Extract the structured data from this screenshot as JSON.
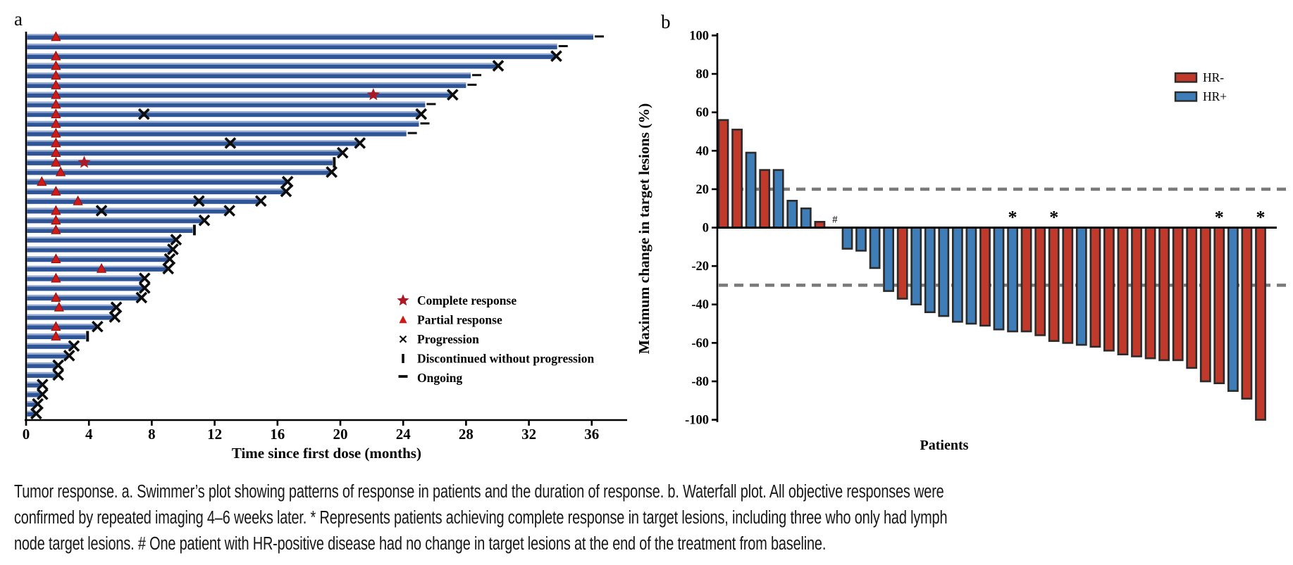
{
  "figure_title": "Tumor response",
  "colors": {
    "swimmer_bar": "#2f5597",
    "swimmer_bar_highlight": "#94aad1",
    "hr_neg_red": "#c0392b",
    "hr_pos_blue": "#3f7db8",
    "bar_outline": "#2b2b2b",
    "marker_triangle_red": "#cf1a17",
    "marker_triangle_edge": "#8e1010",
    "marker_star_red": "#ab1a24",
    "dashed_gray": "#7a7a7a",
    "axis_black": "#000000"
  },
  "chart_data": [
    {
      "type": "swimmer",
      "panel_label": "a",
      "xlabel": "Time since first dose (months)",
      "xlim": [
        0,
        38.5
      ],
      "xticks": [
        0,
        4,
        8,
        12,
        16,
        20,
        24,
        28,
        32,
        36
      ],
      "legend": [
        {
          "marker": "star",
          "label": "Complete response"
        },
        {
          "marker": "triangle",
          "label": "Partial response"
        },
        {
          "marker": "cross",
          "label": "Progression"
        },
        {
          "marker": "vbar",
          "label": "Discontinued without progression"
        },
        {
          "marker": "dash",
          "label": "Ongoing"
        }
      ],
      "bars": [
        {
          "duration": 36.1,
          "end": "ongoing",
          "partial_response_at": 1.9
        },
        {
          "duration": 33.8,
          "end": "ongoing"
        },
        {
          "duration": 33.7,
          "end": "progression",
          "partial_response_at": 1.9
        },
        {
          "duration": 30.0,
          "end": "progression",
          "partial_response_at": 1.9
        },
        {
          "duration": 28.3,
          "end": "ongoing",
          "partial_response_at": 1.9
        },
        {
          "duration": 28.0,
          "end": "ongoing",
          "partial_response_at": 1.9
        },
        {
          "duration": 27.1,
          "end": "progression",
          "partial_response_at": 1.9,
          "complete_response_at": 22.1
        },
        {
          "duration": 25.4,
          "end": "ongoing",
          "partial_response_at": 1.9
        },
        {
          "duration": 25.1,
          "end": "progression",
          "partial_response_at": 1.9,
          "progression_at": [
            7.5
          ]
        },
        {
          "duration": 25.0,
          "end": "ongoing",
          "partial_response_at": 1.9
        },
        {
          "duration": 24.2,
          "end": "ongoing",
          "partial_response_at": 1.9
        },
        {
          "duration": 21.2,
          "end": "progression",
          "partial_response_at": 1.9,
          "progression_at": [
            13.0
          ]
        },
        {
          "duration": 20.1,
          "end": "progression",
          "partial_response_at": 1.9
        },
        {
          "duration": 19.5,
          "end": "discontinued",
          "partial_response_at": 1.9,
          "complete_response_at": 3.7
        },
        {
          "duration": 19.4,
          "end": "progression",
          "partial_response_at": 2.2
        },
        {
          "duration": 16.6,
          "end": "progression",
          "partial_response_at": 1.0
        },
        {
          "duration": 16.5,
          "end": "progression",
          "partial_response_at": 1.9
        },
        {
          "duration": 14.9,
          "end": "progression",
          "partial_response_at": 3.3,
          "progression_at": [
            11.0
          ]
        },
        {
          "duration": 12.9,
          "end": "progression",
          "partial_response_at": 1.9,
          "progression_at": [
            4.8
          ]
        },
        {
          "duration": 11.3,
          "end": "progression",
          "partial_response_at": 1.9
        },
        {
          "duration": 10.6,
          "end": "discontinued",
          "partial_response_at": 1.9
        },
        {
          "duration": 9.5,
          "end": "progression"
        },
        {
          "duration": 9.3,
          "end": "progression"
        },
        {
          "duration": 9.1,
          "end": "progression",
          "partial_response_at": 1.9
        },
        {
          "duration": 9.0,
          "end": "progression",
          "partial_response_at": 4.8
        },
        {
          "duration": 7.5,
          "end": "progression",
          "partial_response_at": 1.9
        },
        {
          "duration": 7.5,
          "end": "progression"
        },
        {
          "duration": 7.3,
          "end": "progression",
          "partial_response_at": 1.9
        },
        {
          "duration": 5.7,
          "end": "progression",
          "partial_response_at": 2.1
        },
        {
          "duration": 5.6,
          "end": "progression"
        },
        {
          "duration": 4.5,
          "end": "progression",
          "partial_response_at": 1.9
        },
        {
          "duration": 3.8,
          "end": "discontinued",
          "partial_response_at": 1.9
        },
        {
          "duration": 3.0,
          "end": "progression"
        },
        {
          "duration": 2.7,
          "end": "progression"
        },
        {
          "duration": 2.0,
          "end": "progression"
        },
        {
          "duration": 2.0,
          "end": "progression"
        },
        {
          "duration": 1.0,
          "end": "progression"
        },
        {
          "duration": 1.0,
          "end": "progression"
        },
        {
          "duration": 0.7,
          "end": "progression"
        },
        {
          "duration": 0.6,
          "end": "progression"
        }
      ]
    },
    {
      "type": "bar",
      "subtype": "waterfall",
      "panel_label": "b",
      "ylabel": "Maximum change in target lesions (%)",
      "xlabel": "Patients",
      "ylim": [
        -100,
        100
      ],
      "yticks": [
        100,
        80,
        60,
        40,
        20,
        0,
        -20,
        -40,
        -60,
        -80,
        -100
      ],
      "reference_lines": [
        20,
        -30
      ],
      "legend": [
        {
          "label": "HR-",
          "group": "HR-"
        },
        {
          "label": "HR+",
          "group": "HR+"
        }
      ],
      "patients": [
        {
          "value": 56,
          "group": "HR-"
        },
        {
          "value": 51,
          "group": "HR-"
        },
        {
          "value": 39,
          "group": "HR+"
        },
        {
          "value": 30,
          "group": "HR-"
        },
        {
          "value": 30,
          "group": "HR+"
        },
        {
          "value": 14,
          "group": "HR+"
        },
        {
          "value": 10,
          "group": "HR+"
        },
        {
          "value": 3,
          "group": "HR-"
        },
        {
          "value": 0,
          "group": "HR+",
          "annotation": "#"
        },
        {
          "value": -11,
          "group": "HR+"
        },
        {
          "value": -12,
          "group": "HR+"
        },
        {
          "value": -21,
          "group": "HR+"
        },
        {
          "value": -33,
          "group": "HR+"
        },
        {
          "value": -37,
          "group": "HR-"
        },
        {
          "value": -40,
          "group": "HR+"
        },
        {
          "value": -44,
          "group": "HR+"
        },
        {
          "value": -46,
          "group": "HR+"
        },
        {
          "value": -49,
          "group": "HR+"
        },
        {
          "value": -50,
          "group": "HR+"
        },
        {
          "value": -51,
          "group": "HR-"
        },
        {
          "value": -53,
          "group": "HR+"
        },
        {
          "value": -54,
          "group": "HR+",
          "annotation": "*"
        },
        {
          "value": -54,
          "group": "HR-"
        },
        {
          "value": -56,
          "group": "HR-"
        },
        {
          "value": -59,
          "group": "HR-",
          "annotation": "*"
        },
        {
          "value": -60,
          "group": "HR-"
        },
        {
          "value": -61,
          "group": "HR+"
        },
        {
          "value": -62,
          "group": "HR-"
        },
        {
          "value": -64,
          "group": "HR-"
        },
        {
          "value": -66,
          "group": "HR-"
        },
        {
          "value": -67,
          "group": "HR-"
        },
        {
          "value": -68,
          "group": "HR-"
        },
        {
          "value": -69,
          "group": "HR-"
        },
        {
          "value": -69,
          "group": "HR-"
        },
        {
          "value": -73,
          "group": "HR-"
        },
        {
          "value": -80,
          "group": "HR-"
        },
        {
          "value": -81,
          "group": "HR-",
          "annotation": "*"
        },
        {
          "value": -85,
          "group": "HR+"
        },
        {
          "value": -89,
          "group": "HR-"
        },
        {
          "value": -100,
          "group": "HR-",
          "annotation": "*"
        }
      ]
    }
  ],
  "caption": {
    "lines": [
      "Tumor response. a. Swimmer’s plot showing patterns of response in patients and the duration of response. b. Waterfall plot. All objective responses were",
      "confirmed by repeated imaging 4–6 weeks later. * Represents patients achieving complete response in target lesions, including three who only had lymph",
      "node target lesions. # One patient with HR-positive disease had no change in target lesions at the end of the treatment from baseline."
    ]
  }
}
